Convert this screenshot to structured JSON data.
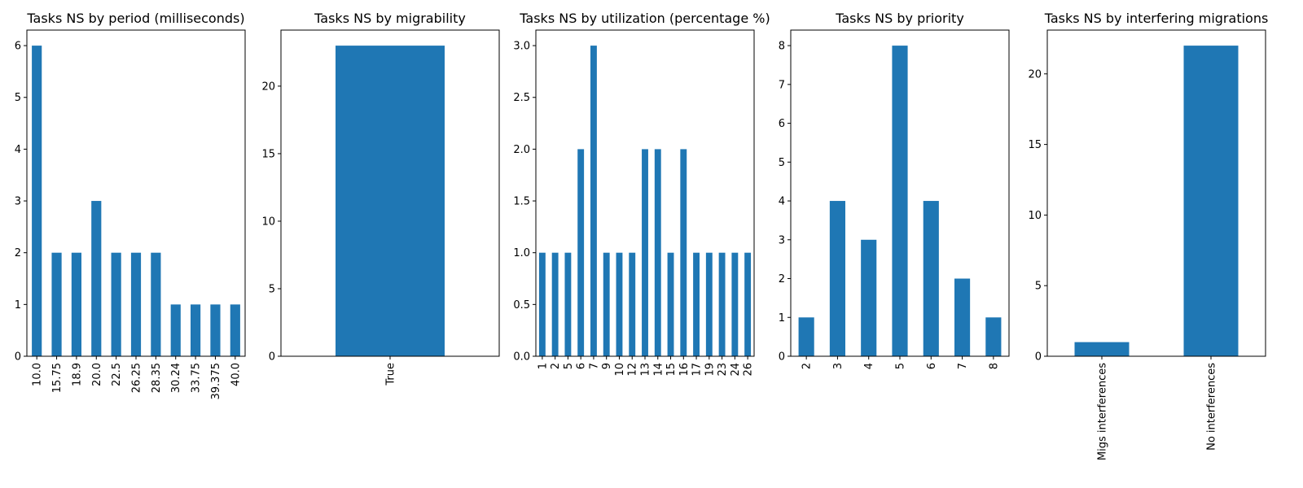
{
  "chart_data": [
    {
      "type": "bar",
      "title": "Tasks NS by period (milliseconds)",
      "categories": [
        "10.0",
        "15.75",
        "18.9",
        "20.0",
        "22.5",
        "26.25",
        "28.35",
        "30.24",
        "33.75",
        "39.375",
        "40.0"
      ],
      "values": [
        6,
        2,
        2,
        3,
        2,
        2,
        2,
        1,
        1,
        1,
        1
      ],
      "xlabel": "",
      "ylabel": "",
      "ylim": [
        0,
        6.3
      ],
      "yticks": [
        0,
        1,
        2,
        3,
        4,
        5,
        6
      ],
      "yticklabels": [
        "0",
        "1",
        "2",
        "3",
        "4",
        "5",
        "6"
      ],
      "grid": false,
      "color": "#1f77b4"
    },
    {
      "type": "bar",
      "title": "Tasks NS by migrability",
      "categories": [
        "True"
      ],
      "values": [
        23
      ],
      "xlabel": "",
      "ylabel": "",
      "ylim": [
        0,
        24.15
      ],
      "yticks": [
        0,
        5,
        10,
        15,
        20
      ],
      "yticklabels": [
        "0",
        "5",
        "10",
        "15",
        "20"
      ],
      "grid": false,
      "color": "#1f77b4"
    },
    {
      "type": "bar",
      "title": "Tasks NS by utilization (percentage %)",
      "categories": [
        "1",
        "2",
        "5",
        "6",
        "7",
        "9",
        "10",
        "12",
        "13",
        "14",
        "15",
        "16",
        "17",
        "19",
        "23",
        "24",
        "26"
      ],
      "values": [
        1,
        1,
        1,
        2,
        3,
        1,
        1,
        1,
        2,
        2,
        1,
        2,
        1,
        1,
        1,
        1,
        1
      ],
      "xlabel": "",
      "ylabel": "",
      "ylim": [
        0,
        3.15
      ],
      "yticks": [
        0,
        0.5,
        1,
        1.5,
        2,
        2.5,
        3
      ],
      "yticklabels": [
        "0.0",
        "0.5",
        "1.0",
        "1.5",
        "2.0",
        "2.5",
        "3.0"
      ],
      "grid": false,
      "color": "#1f77b4"
    },
    {
      "type": "bar",
      "title": "Tasks NS by priority",
      "categories": [
        "2",
        "3",
        "4",
        "5",
        "6",
        "7",
        "8"
      ],
      "values": [
        1,
        4,
        3,
        8,
        4,
        2,
        1
      ],
      "xlabel": "",
      "ylabel": "",
      "ylim": [
        0,
        8.4
      ],
      "yticks": [
        0,
        1,
        2,
        3,
        4,
        5,
        6,
        7,
        8
      ],
      "yticklabels": [
        "0",
        "1",
        "2",
        "3",
        "4",
        "5",
        "6",
        "7",
        "8"
      ],
      "grid": false,
      "color": "#1f77b4"
    },
    {
      "type": "bar",
      "title": "Tasks NS by interfering migrations",
      "categories": [
        "Migs interferences",
        "No interferences"
      ],
      "values": [
        1,
        22
      ],
      "xlabel": "",
      "ylabel": "",
      "ylim": [
        0,
        23.1
      ],
      "yticks": [
        0,
        5,
        10,
        15,
        20
      ],
      "yticklabels": [
        "0",
        "5",
        "10",
        "15",
        "20"
      ],
      "grid": false,
      "color": "#1f77b4"
    }
  ]
}
